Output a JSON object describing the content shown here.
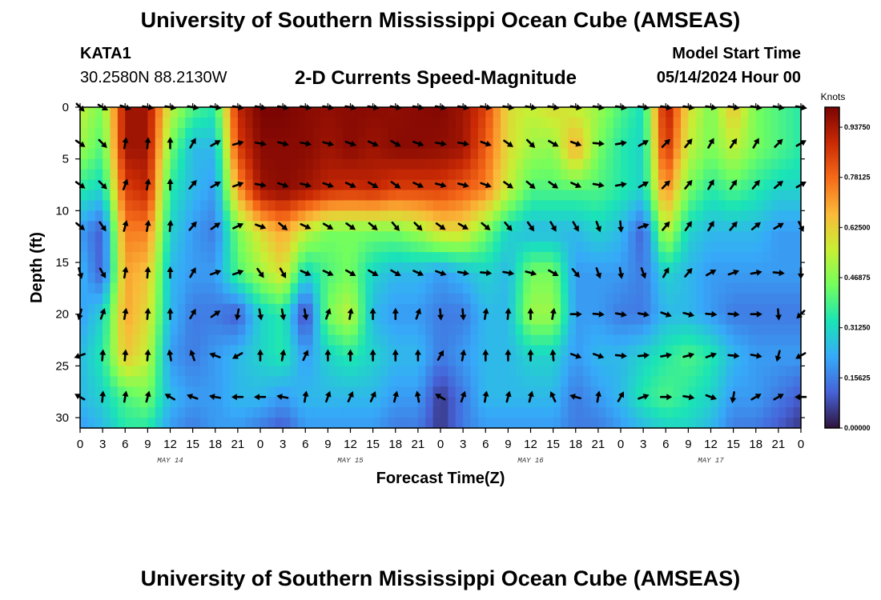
{
  "header": {
    "title": "University of Southern Mississippi Ocean Cube (AMSEAS)",
    "station_id": "KATA1",
    "station_coords": "30.2580N  88.2130W",
    "chart_title": "2-D Currents Speed-Magnitude",
    "model_start_label": "Model Start Time",
    "model_start_value": "05/14/2024 Hour 00"
  },
  "footer": {
    "title": "University of Southern Mississippi Ocean Cube (AMSEAS)"
  },
  "chart_data": {
    "type": "heatmap",
    "title": "2-D Currents Speed-Magnitude",
    "xlabel": "Forecast Time(Z)",
    "ylabel": "Depth (ft)",
    "x_range_hours": [
      0,
      96
    ],
    "y_range_ft": [
      0,
      31
    ],
    "x_ticks": [
      {
        "hour": 0,
        "label": "0"
      },
      {
        "hour": 3,
        "label": "3"
      },
      {
        "hour": 6,
        "label": "6"
      },
      {
        "hour": 9,
        "label": "9"
      },
      {
        "hour": 12,
        "label": "12"
      },
      {
        "hour": 15,
        "label": "15"
      },
      {
        "hour": 18,
        "label": "18"
      },
      {
        "hour": 21,
        "label": "21"
      },
      {
        "hour": 24,
        "label": "0"
      },
      {
        "hour": 27,
        "label": "3"
      },
      {
        "hour": 30,
        "label": "6"
      },
      {
        "hour": 33,
        "label": "9"
      },
      {
        "hour": 36,
        "label": "12"
      },
      {
        "hour": 39,
        "label": "15"
      },
      {
        "hour": 42,
        "label": "18"
      },
      {
        "hour": 45,
        "label": "21"
      },
      {
        "hour": 48,
        "label": "0"
      },
      {
        "hour": 51,
        "label": "3"
      },
      {
        "hour": 54,
        "label": "6"
      },
      {
        "hour": 57,
        "label": "9"
      },
      {
        "hour": 60,
        "label": "12"
      },
      {
        "hour": 63,
        "label": "15"
      },
      {
        "hour": 66,
        "label": "18"
      },
      {
        "hour": 69,
        "label": "21"
      },
      {
        "hour": 72,
        "label": "0"
      },
      {
        "hour": 75,
        "label": "3"
      },
      {
        "hour": 78,
        "label": "6"
      },
      {
        "hour": 81,
        "label": "9"
      },
      {
        "hour": 84,
        "label": "12"
      },
      {
        "hour": 87,
        "label": "15"
      },
      {
        "hour": 90,
        "label": "18"
      },
      {
        "hour": 93,
        "label": "21"
      },
      {
        "hour": 96,
        "label": "0"
      }
    ],
    "y_ticks": [
      {
        "depth": 0,
        "label": "0"
      },
      {
        "depth": 5,
        "label": "5"
      },
      {
        "depth": 10,
        "label": "10"
      },
      {
        "depth": 15,
        "label": "15"
      },
      {
        "depth": 20,
        "label": "20"
      },
      {
        "depth": 25,
        "label": "25"
      },
      {
        "depth": 30,
        "label": "30"
      }
    ],
    "date_labels": [
      {
        "hour": 12,
        "label": "MAY 14"
      },
      {
        "hour": 36,
        "label": "MAY 15"
      },
      {
        "hour": 60,
        "label": "MAY 16"
      },
      {
        "hour": 84,
        "label": "MAY 17"
      }
    ],
    "colorbar": {
      "units": "Knots",
      "range": [
        0,
        1.0
      ],
      "ticks": [
        {
          "value": 0.0,
          "label": "0.00000"
        },
        {
          "value": 0.15625,
          "label": "0.15625"
        },
        {
          "value": 0.3125,
          "label": "0.31250"
        },
        {
          "value": 0.46875,
          "label": "0.46875"
        },
        {
          "value": 0.625,
          "label": "0.62500"
        },
        {
          "value": 0.78125,
          "label": "0.78125"
        },
        {
          "value": 0.9375,
          "label": "0.93750"
        }
      ],
      "colors": [
        "#30123b",
        "#4662d7",
        "#36aaf9",
        "#1ae4b6",
        "#72fe5e",
        "#c8ef34",
        "#faba39",
        "#f66b19",
        "#ca2a04",
        "#7a0403"
      ]
    },
    "speed_profiles_by_depth": {
      "depths_ft": [
        0,
        4,
        8,
        12,
        16,
        20,
        24,
        28,
        31
      ],
      "hours": [
        0,
        3,
        6,
        9,
        12,
        15,
        18,
        21,
        24,
        27,
        30,
        33,
        36,
        39,
        42,
        45,
        48,
        51,
        54,
        57,
        60,
        63,
        66,
        69,
        72,
        75,
        78,
        81,
        84,
        87,
        90,
        93,
        96
      ],
      "rows": [
        [
          0.55,
          0.45,
          0.95,
          0.95,
          0.55,
          0.4,
          0.35,
          0.9,
          1.0,
          1.0,
          0.98,
          0.97,
          0.98,
          0.98,
          0.97,
          0.98,
          0.99,
          0.95,
          0.85,
          0.6,
          0.55,
          0.6,
          0.55,
          0.5,
          0.4,
          0.32,
          0.95,
          0.6,
          0.45,
          0.65,
          0.45,
          0.4,
          0.35
        ],
        [
          0.5,
          0.4,
          0.95,
          0.95,
          0.45,
          0.25,
          0.25,
          0.85,
          0.98,
          0.98,
          0.98,
          0.95,
          0.98,
          0.95,
          0.98,
          0.98,
          0.97,
          0.95,
          0.8,
          0.6,
          0.5,
          0.48,
          0.7,
          0.45,
          0.35,
          0.3,
          0.9,
          0.55,
          0.45,
          0.55,
          0.45,
          0.4,
          0.35
        ],
        [
          0.35,
          0.3,
          0.85,
          0.9,
          0.35,
          0.25,
          0.2,
          0.7,
          0.95,
          0.98,
          0.95,
          0.9,
          0.88,
          0.9,
          0.85,
          0.85,
          0.85,
          0.8,
          0.75,
          0.55,
          0.4,
          0.4,
          0.4,
          0.4,
          0.35,
          0.3,
          0.75,
          0.45,
          0.35,
          0.4,
          0.35,
          0.3,
          0.3
        ],
        [
          0.2,
          0.1,
          0.75,
          0.75,
          0.3,
          0.2,
          0.15,
          0.45,
          0.6,
          0.7,
          0.55,
          0.45,
          0.45,
          0.45,
          0.45,
          0.5,
          0.6,
          0.6,
          0.45,
          0.3,
          0.25,
          0.25,
          0.25,
          0.3,
          0.25,
          0.1,
          0.55,
          0.3,
          0.25,
          0.25,
          0.25,
          0.2,
          0.2
        ],
        [
          0.25,
          0.1,
          0.7,
          0.65,
          0.25,
          0.2,
          0.2,
          0.4,
          0.5,
          0.6,
          0.3,
          0.4,
          0.45,
          0.3,
          0.25,
          0.25,
          0.2,
          0.25,
          0.3,
          0.25,
          0.45,
          0.45,
          0.2,
          0.2,
          0.2,
          0.15,
          0.3,
          0.25,
          0.2,
          0.2,
          0.2,
          0.2,
          0.2
        ],
        [
          0.2,
          0.3,
          0.7,
          0.6,
          0.25,
          0.15,
          0.15,
          0.1,
          0.3,
          0.35,
          0.05,
          0.45,
          0.55,
          0.25,
          0.2,
          0.2,
          0.15,
          0.15,
          0.25,
          0.25,
          0.5,
          0.5,
          0.2,
          0.2,
          0.15,
          0.15,
          0.25,
          0.25,
          0.2,
          0.15,
          0.15,
          0.15,
          0.15
        ],
        [
          0.25,
          0.35,
          0.65,
          0.55,
          0.2,
          0.15,
          0.2,
          0.25,
          0.3,
          0.35,
          0.2,
          0.3,
          0.35,
          0.3,
          0.25,
          0.25,
          0.15,
          0.2,
          0.25,
          0.25,
          0.3,
          0.3,
          0.2,
          0.25,
          0.25,
          0.3,
          0.35,
          0.4,
          0.35,
          0.25,
          0.2,
          0.2,
          0.2
        ],
        [
          0.25,
          0.3,
          0.4,
          0.45,
          0.25,
          0.2,
          0.2,
          0.25,
          0.25,
          0.2,
          0.25,
          0.25,
          0.25,
          0.25,
          0.2,
          0.2,
          0.05,
          0.15,
          0.25,
          0.25,
          0.25,
          0.25,
          0.15,
          0.2,
          0.25,
          0.35,
          0.4,
          0.35,
          0.3,
          0.2,
          0.2,
          0.15,
          0.1
        ],
        [
          0.2,
          0.25,
          0.35,
          0.35,
          0.2,
          0.15,
          0.2,
          0.2,
          0.15,
          0.1,
          0.2,
          0.2,
          0.2,
          0.2,
          0.15,
          0.15,
          0.05,
          0.15,
          0.2,
          0.2,
          0.2,
          0.2,
          0.15,
          0.15,
          0.2,
          0.25,
          0.3,
          0.3,
          0.25,
          0.15,
          0.15,
          0.1,
          0.05
        ]
      ]
    },
    "current_vectors": {
      "depths_ft": [
        0,
        3.5,
        7.5,
        11.5,
        16,
        20,
        24,
        28
      ],
      "hours": [
        0,
        3,
        6,
        9,
        12,
        15,
        18,
        21,
        24,
        27,
        30,
        33,
        36,
        39,
        42,
        45,
        48,
        51,
        54,
        57,
        60,
        63,
        66,
        69,
        72,
        75,
        78,
        81,
        84,
        87,
        90,
        93,
        96
      ],
      "direction_deg_from_north": [
        [
          135,
          120,
          110,
          100,
          100,
          100,
          100,
          100,
          100,
          100,
          100,
          100,
          100,
          100,
          100,
          100,
          100,
          100,
          100,
          100,
          100,
          100,
          100,
          100,
          100,
          100,
          100,
          100,
          100,
          100,
          100,
          100,
          100
        ],
        [
          125,
          135,
          10,
          5,
          0,
          30,
          60,
          75,
          100,
          105,
          100,
          105,
          110,
          115,
          120,
          110,
          100,
          100,
          110,
          125,
          135,
          120,
          110,
          95,
          80,
          60,
          45,
          40,
          30,
          35,
          30,
          45,
          60
        ],
        [
          125,
          135,
          20,
          10,
          0,
          40,
          60,
          70,
          100,
          110,
          105,
          110,
          115,
          120,
          125,
          115,
          105,
          105,
          110,
          125,
          130,
          125,
          115,
          100,
          80,
          60,
          45,
          40,
          30,
          35,
          40,
          50,
          60
        ],
        [
          130,
          145,
          15,
          10,
          5,
          40,
          55,
          65,
          110,
          130,
          115,
          120,
          125,
          130,
          140,
          135,
          125,
          120,
          130,
          140,
          145,
          150,
          150,
          160,
          175,
          70,
          40,
          35,
          30,
          40,
          50,
          60,
          155
        ],
        [
          165,
          150,
          10,
          5,
          0,
          30,
          70,
          70,
          145,
          150,
          115,
          115,
          120,
          120,
          120,
          115,
          110,
          100,
          95,
          100,
          105,
          120,
          140,
          160,
          170,
          160,
          30,
          40,
          60,
          70,
          80,
          95,
          180
        ],
        [
          195,
          20,
          10,
          5,
          0,
          30,
          55,
          190,
          170,
          170,
          170,
          20,
          10,
          0,
          0,
          20,
          175,
          175,
          10,
          5,
          0,
          10,
          90,
          95,
          100,
          100,
          110,
          105,
          95,
          95,
          90,
          175,
          225
        ],
        [
          250,
          5,
          5,
          5,
          350,
          340,
          290,
          240,
          0,
          10,
          25,
          0,
          0,
          0,
          0,
          0,
          30,
          10,
          0,
          0,
          0,
          355,
          110,
          110,
          95,
          85,
          80,
          75,
          70,
          95,
          100,
          195,
          240
        ],
        [
          300,
          5,
          10,
          15,
          300,
          290,
          280,
          270,
          270,
          280,
          10,
          20,
          25,
          25,
          15,
          350,
          300,
          20,
          10,
          15,
          15,
          335,
          285,
          10,
          30,
          70,
          90,
          100,
          110,
          190,
          60,
          60,
          270
        ]
      ]
    }
  }
}
